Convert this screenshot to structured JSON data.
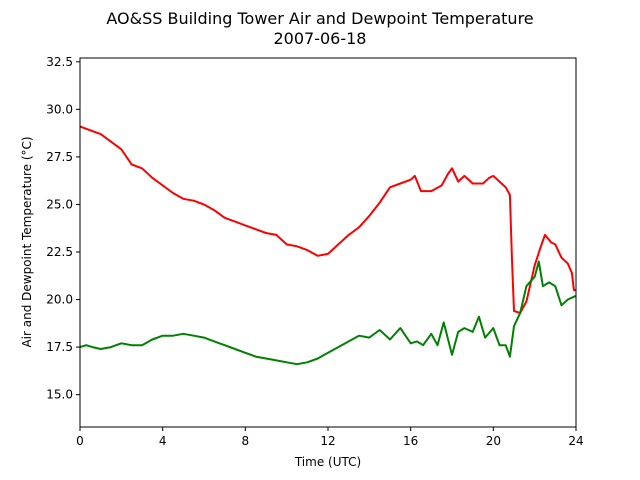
{
  "chart_data": {
    "type": "line",
    "title": "AO&SS Building Tower Air and Dewpoint Temperature",
    "subtitle": "2007-06-18",
    "xlabel": "Time (UTC)",
    "ylabel": "Air and Dewpoint Temperature (°C)",
    "xlim": [
      0,
      24
    ],
    "ylim": [
      13.3,
      32.7
    ],
    "xticks": [
      0,
      4,
      8,
      12,
      16,
      20,
      24
    ],
    "xtick_labels": [
      "0",
      "4",
      "8",
      "12",
      "16",
      "20",
      "24"
    ],
    "yticks": [
      15.0,
      17.5,
      20.0,
      22.5,
      25.0,
      27.5,
      30.0,
      32.5
    ],
    "ytick_labels": [
      "15.0",
      "17.5",
      "20.0",
      "22.5",
      "25.0",
      "27.5",
      "30.0",
      "32.5"
    ],
    "grid": false,
    "legend": "none",
    "series": [
      {
        "color": "#ff0000",
        "x": [
          0,
          0.5,
          1,
          1.5,
          2,
          2.5,
          3,
          3.5,
          4,
          4.5,
          5,
          5.5,
          6,
          6.5,
          7,
          7.5,
          8,
          8.5,
          9,
          9.5,
          10,
          10.5,
          11,
          11.5,
          12,
          12.5,
          13,
          13.5,
          14,
          14.5,
          15,
          15.5,
          16,
          16.2,
          16.5,
          17,
          17.5,
          17.8,
          18,
          18.3,
          18.6,
          19,
          19.5,
          19.8,
          20,
          20.3,
          20.6,
          20.8,
          20.9,
          21,
          21.3,
          21.6,
          22,
          22.3,
          22.5,
          22.8,
          23,
          23.3,
          23.6,
          23.8,
          23.9,
          24
        ],
        "y": [
          29.1,
          28.9,
          28.7,
          28.3,
          27.9,
          27.1,
          26.9,
          26.4,
          26.0,
          25.6,
          25.3,
          25.2,
          25.0,
          24.7,
          24.3,
          24.1,
          23.9,
          23.7,
          23.5,
          23.4,
          22.9,
          22.8,
          22.6,
          22.3,
          22.4,
          22.9,
          23.4,
          23.8,
          24.4,
          25.1,
          25.9,
          26.1,
          26.3,
          26.5,
          25.7,
          25.7,
          26.0,
          26.6,
          26.9,
          26.2,
          26.5,
          26.1,
          26.1,
          26.4,
          26.5,
          26.2,
          25.9,
          25.5,
          22.2,
          19.4,
          19.3,
          19.9,
          21.8,
          22.8,
          23.4,
          23.0,
          22.9,
          22.2,
          21.9,
          21.4,
          20.5,
          20.5
        ]
      },
      {
        "color": "#008000",
        "x": [
          0,
          0.3,
          0.6,
          1,
          1.5,
          2,
          2.5,
          3,
          3.5,
          4,
          4.5,
          5,
          5.5,
          6,
          6.5,
          7,
          7.5,
          8,
          8.5,
          9,
          9.5,
          10,
          10.5,
          11,
          11.5,
          12,
          12.5,
          13,
          13.5,
          14,
          14.5,
          15,
          15.5,
          16,
          16.3,
          16.6,
          17,
          17.3,
          17.6,
          18,
          18.3,
          18.6,
          19,
          19.3,
          19.6,
          20,
          20.3,
          20.6,
          20.8,
          21,
          21.3,
          21.6,
          22,
          22.2,
          22.4,
          22.7,
          23,
          23.3,
          23.6,
          24
        ],
        "y": [
          17.5,
          17.6,
          17.5,
          17.4,
          17.5,
          17.7,
          17.6,
          17.6,
          17.9,
          18.1,
          18.1,
          18.2,
          18.1,
          18.0,
          17.8,
          17.6,
          17.4,
          17.2,
          17.0,
          16.9,
          16.8,
          16.7,
          16.6,
          16.7,
          16.9,
          17.2,
          17.5,
          17.8,
          18.1,
          18.0,
          18.4,
          17.9,
          18.5,
          17.7,
          17.8,
          17.6,
          18.2,
          17.6,
          18.8,
          17.1,
          18.3,
          18.5,
          18.3,
          19.1,
          18.0,
          18.5,
          17.6,
          17.6,
          17.0,
          18.6,
          19.3,
          20.7,
          21.2,
          22.0,
          20.7,
          20.9,
          20.7,
          19.7,
          20.0,
          20.2
        ]
      }
    ]
  }
}
